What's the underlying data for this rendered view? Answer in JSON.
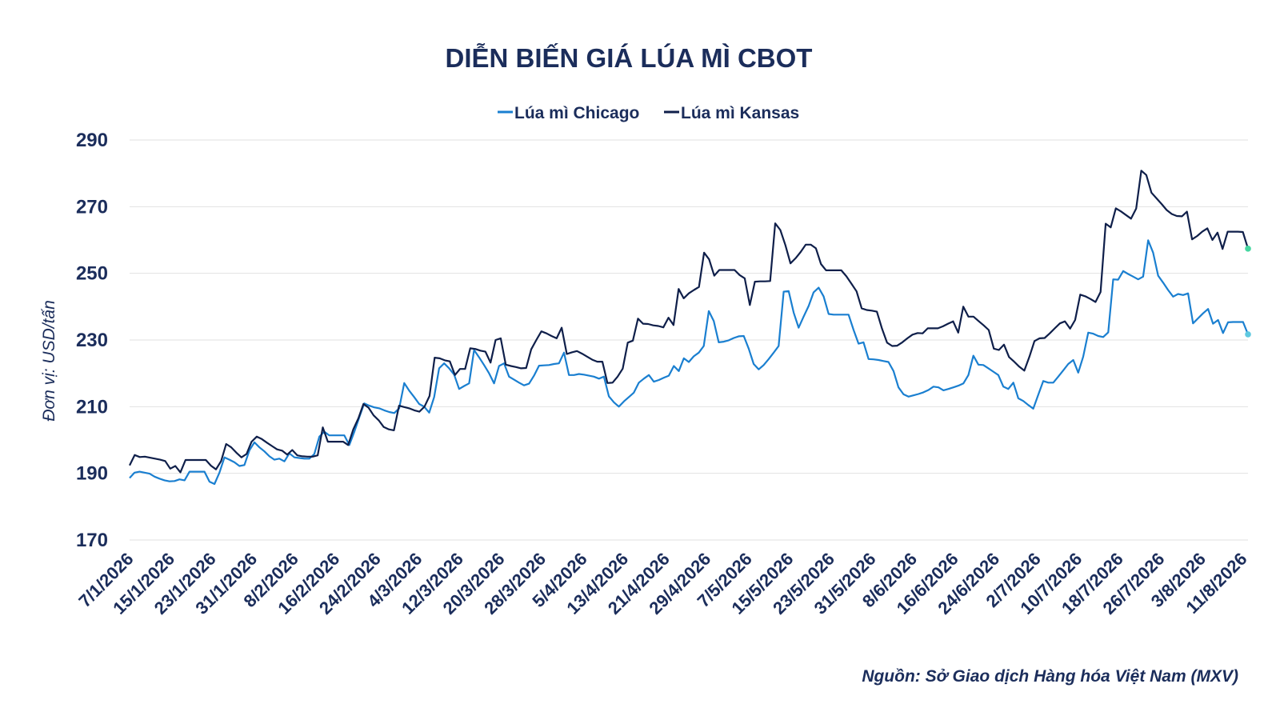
{
  "chart_data": {
    "type": "line",
    "title": "DIỄN BIẾN GIÁ LÚA MÌ CBOT",
    "ylabel": "Đơn vị: USD/tấn",
    "source": "Nguồn: Sở Giao dịch Hàng hóa Việt Nam (MXV)",
    "ylim": [
      170,
      290
    ],
    "yticks": [
      170,
      190,
      210,
      230,
      250,
      270,
      290
    ],
    "grid": true,
    "legend_position": "top-center",
    "x_tick_labels": [
      "7/1/2026",
      "15/1/2026",
      "23/1/2026",
      "31/1/2026",
      "8/2/2026",
      "16/2/2026",
      "24/2/2026",
      "4/3/2026",
      "12/3/2026",
      "20/3/2026",
      "28/3/2026",
      "5/4/2026",
      "13/4/2026",
      "21/4/2026",
      "29/4/2026",
      "7/5/2026",
      "15/5/2026",
      "23/5/2026",
      "31/5/2026",
      "8/6/2026",
      "16/6/2026",
      "24/6/2026",
      "2/7/2026",
      "10/7/2026",
      "18/7/2026",
      "26/7/2026",
      "3/8/2026",
      "11/8/2026"
    ],
    "series": [
      {
        "name": "Lúa mì Chicago",
        "color": "#1a7fd0",
        "values": [
          188.6,
          190.2,
          190.5,
          190.2,
          189.9,
          189.0,
          188.4,
          187.9,
          187.6,
          187.7,
          188.2,
          187.9,
          190.5,
          190.5,
          190.5,
          190.5,
          187.5,
          186.8,
          190.2,
          194.8,
          194.1,
          193.3,
          192.2,
          192.5,
          196.9,
          199.3,
          197.8,
          196.6,
          195.1,
          194.1,
          194.4,
          193.6,
          196.0,
          194.8,
          194.6,
          194.4,
          194.4,
          195.8,
          201.0,
          202.5,
          201.4,
          201.4,
          201.4,
          201.4,
          198.5,
          202.4,
          206.8,
          211.0,
          210.3,
          209.8,
          209.5,
          208.9,
          208.4,
          208.1,
          209.5,
          217.1,
          214.8,
          212.9,
          210.8,
          210.0,
          208.2,
          212.9,
          221.5,
          223.0,
          221.5,
          219.6,
          215.3,
          216.2,
          217.0,
          227.0,
          224.8,
          222.5,
          220.0,
          217.0,
          222.2,
          223.0,
          219.0,
          218.1,
          217.2,
          216.4,
          216.9,
          219.3,
          222.3,
          222.4,
          222.5,
          222.8,
          223.0,
          226.2,
          219.5,
          219.5,
          219.8,
          219.6,
          219.3,
          219.0,
          218.4,
          219.0,
          213.1,
          211.3,
          210.0,
          211.6,
          212.9,
          214.2,
          217.2,
          218.4,
          219.5,
          217.5,
          218.0,
          218.7,
          219.3,
          222.2,
          220.7,
          224.5,
          223.4,
          225.1,
          226.2,
          228.2,
          238.7,
          235.7,
          229.3,
          229.5,
          229.9,
          230.6,
          231.1,
          231.2,
          227.4,
          222.8,
          221.2,
          222.5,
          224.3,
          226.2,
          228.2,
          244.5,
          244.7,
          238.2,
          233.7,
          237.0,
          240.2,
          244.3,
          245.7,
          243.1,
          237.8,
          237.6,
          237.6,
          237.6,
          237.6,
          233.0,
          228.9,
          229.3,
          224.3,
          224.2,
          224.0,
          223.7,
          223.4,
          220.7,
          215.8,
          213.7,
          213.0,
          213.4,
          213.8,
          214.3,
          215.0,
          216.0,
          215.8,
          214.9,
          215.3,
          215.8,
          216.3,
          217.0,
          219.5,
          225.3,
          222.6,
          222.5,
          221.5,
          220.5,
          219.5,
          216.0,
          215.3,
          217.2,
          212.5,
          211.7,
          210.5,
          209.4,
          213.6,
          217.7,
          217.2,
          217.2,
          219.0,
          220.9,
          222.8,
          224.0,
          220.2,
          225.0,
          232.2,
          231.9,
          231.2,
          230.9,
          232.3,
          248.2,
          248.1,
          250.7,
          249.8,
          249.0,
          248.2,
          249.0,
          259.9,
          256.2,
          249.3,
          247.2,
          245.0,
          243.0,
          243.8,
          243.5,
          244.0,
          235.0,
          236.5,
          238.0,
          239.3,
          234.9,
          236.0,
          232.1,
          235.3,
          235.4,
          235.4,
          235.4,
          231.7
        ]
      },
      {
        "name": "Lúa mì Kansas",
        "color": "#0f1f4a",
        "values": [
          192.4,
          195.5,
          194.9,
          195.0,
          194.7,
          194.4,
          194.1,
          193.7,
          191.4,
          192.2,
          190.3,
          194.0,
          194.0,
          194.0,
          194.0,
          194.0,
          192.3,
          191.2,
          193.7,
          198.8,
          197.8,
          196.2,
          194.8,
          195.8,
          199.5,
          201.0,
          200.3,
          199.2,
          198.2,
          197.2,
          196.8,
          195.6,
          197.0,
          195.4,
          195.1,
          195.0,
          195.0,
          195.4,
          203.8,
          199.5,
          199.5,
          199.5,
          199.5,
          198.5,
          203.2,
          206.5,
          210.8,
          209.7,
          207.4,
          205.9,
          203.9,
          203.2,
          202.9,
          210.3,
          209.9,
          209.5,
          208.9,
          208.5,
          210.0,
          213.2,
          224.7,
          224.5,
          223.9,
          223.6,
          219.5,
          221.3,
          221.3,
          227.5,
          227.3,
          226.8,
          226.5,
          223.2,
          230.0,
          230.5,
          222.6,
          222.2,
          221.9,
          221.5,
          221.6,
          227.2,
          230.0,
          232.6,
          232.0,
          231.2,
          230.5,
          233.7,
          225.8,
          226.3,
          226.7,
          225.9,
          225.0,
          224.1,
          223.5,
          223.5,
          217.1,
          217.2,
          219.0,
          221.4,
          229.2,
          229.8,
          236.4,
          234.9,
          234.8,
          234.4,
          234.2,
          233.8,
          236.7,
          234.5,
          245.3,
          242.5,
          244.0,
          245.0,
          245.9,
          256.2,
          254.2,
          249.3,
          251.0,
          251.0,
          251.0,
          251.0,
          249.5,
          248.5,
          240.5,
          247.5,
          247.6,
          247.6,
          247.7,
          265.0,
          263.0,
          258.5,
          253.0,
          254.5,
          256.4,
          258.6,
          258.6,
          257.5,
          252.8,
          250.9,
          250.9,
          250.9,
          250.9,
          249.1,
          246.9,
          244.6,
          239.5,
          239.0,
          238.8,
          238.5,
          233.4,
          229.2,
          228.2,
          228.3,
          229.3,
          230.5,
          231.6,
          232.1,
          232.0,
          233.5,
          233.5,
          233.5,
          234.1,
          234.9,
          235.6,
          232.2,
          240.0,
          237.0,
          237.0,
          235.7,
          234.4,
          233.0,
          227.4,
          227.0,
          228.6,
          224.9,
          223.5,
          222.0,
          220.8,
          225.0,
          229.7,
          230.5,
          230.6,
          232.0,
          233.5,
          235.0,
          235.6,
          233.4,
          236.0,
          243.6,
          243.1,
          242.3,
          241.4,
          244.4,
          264.9,
          263.8,
          269.5,
          268.6,
          267.5,
          266.4,
          269.4,
          280.8,
          279.5,
          274.2,
          272.5,
          270.8,
          269.0,
          267.8,
          267.2,
          267.1,
          268.5,
          260.2,
          261.2,
          262.5,
          263.5,
          260.0,
          262.2,
          257.3,
          262.5,
          262.5,
          262.5,
          262.4,
          257.4
        ]
      }
    ]
  }
}
